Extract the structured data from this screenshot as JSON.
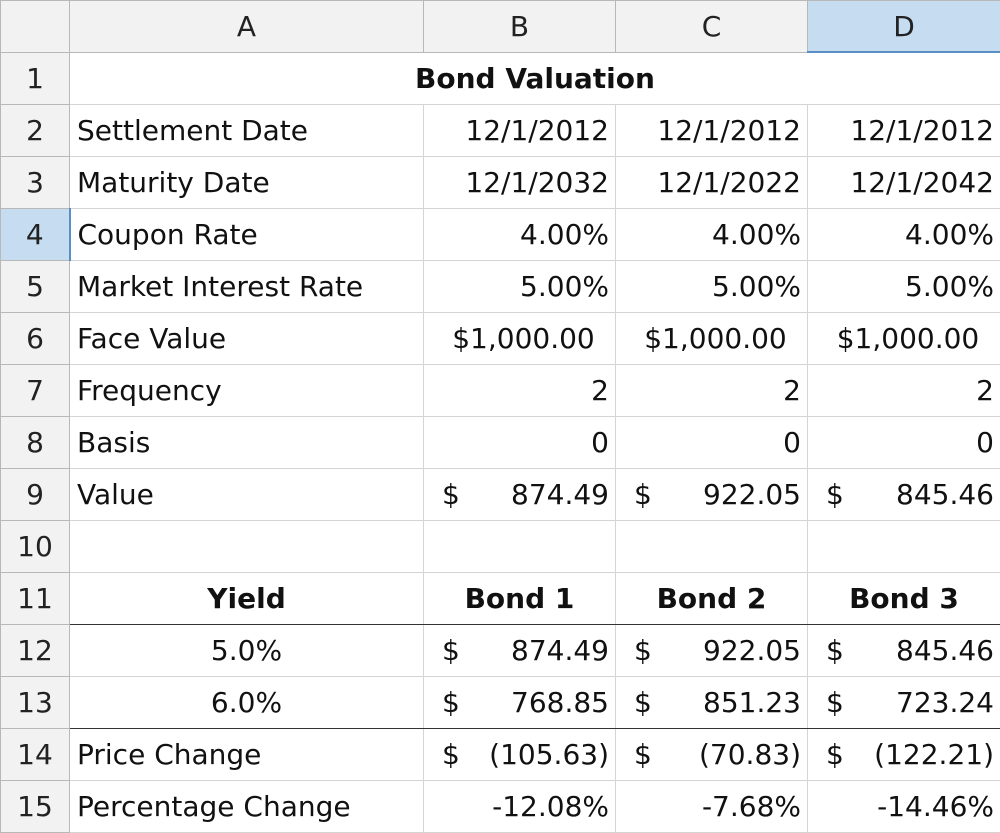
{
  "column_headers": [
    "A",
    "B",
    "C",
    "D"
  ],
  "row_numbers": [
    "1",
    "2",
    "3",
    "4",
    "5",
    "6",
    "7",
    "8",
    "9",
    "10",
    "11",
    "12",
    "13",
    "14",
    "15"
  ],
  "selected_column": "D",
  "selected_row": "4",
  "title": "Bond Valuation",
  "inputs": {
    "settlement": {
      "label": "Settlement Date",
      "values": [
        "12/1/2012",
        "12/1/2012",
        "12/1/2012"
      ]
    },
    "maturity": {
      "label": "Maturity Date",
      "values": [
        "12/1/2032",
        "12/1/2022",
        "12/1/2042"
      ]
    },
    "coupon": {
      "label": "Coupon Rate",
      "values": [
        "4.00%",
        "4.00%",
        "4.00%"
      ]
    },
    "market_rate": {
      "label": "Market Interest Rate",
      "values": [
        "5.00%",
        "5.00%",
        "5.00%"
      ]
    },
    "face": {
      "label": "Face Value",
      "values": [
        "$1,000.00",
        "$1,000.00",
        "$1,000.00"
      ]
    },
    "frequency": {
      "label": "Frequency",
      "values": [
        "2",
        "2",
        "2"
      ]
    },
    "basis": {
      "label": "Basis",
      "values": [
        "0",
        "0",
        "0"
      ]
    },
    "value": {
      "label": "Value",
      "currency": "$",
      "values": [
        "874.49",
        "922.05",
        "845.46"
      ]
    }
  },
  "sensitivity": {
    "headers": [
      "Yield",
      "Bond 1",
      "Bond 2",
      "Bond 3"
    ],
    "rows": [
      {
        "yield": "5.0%",
        "currency": "$",
        "values": [
          "874.49",
          "922.05",
          "845.46"
        ]
      },
      {
        "yield": "6.0%",
        "currency": "$",
        "values": [
          "768.85",
          "851.23",
          "723.24"
        ]
      }
    ],
    "price_change": {
      "label": "Price Change",
      "currency": "$",
      "values": [
        "(105.63)",
        "(70.83)",
        "(122.21)"
      ]
    },
    "pct_change": {
      "label": "Percentage Change",
      "values": [
        "-12.08%",
        "-7.68%",
        "-14.46%"
      ]
    }
  }
}
